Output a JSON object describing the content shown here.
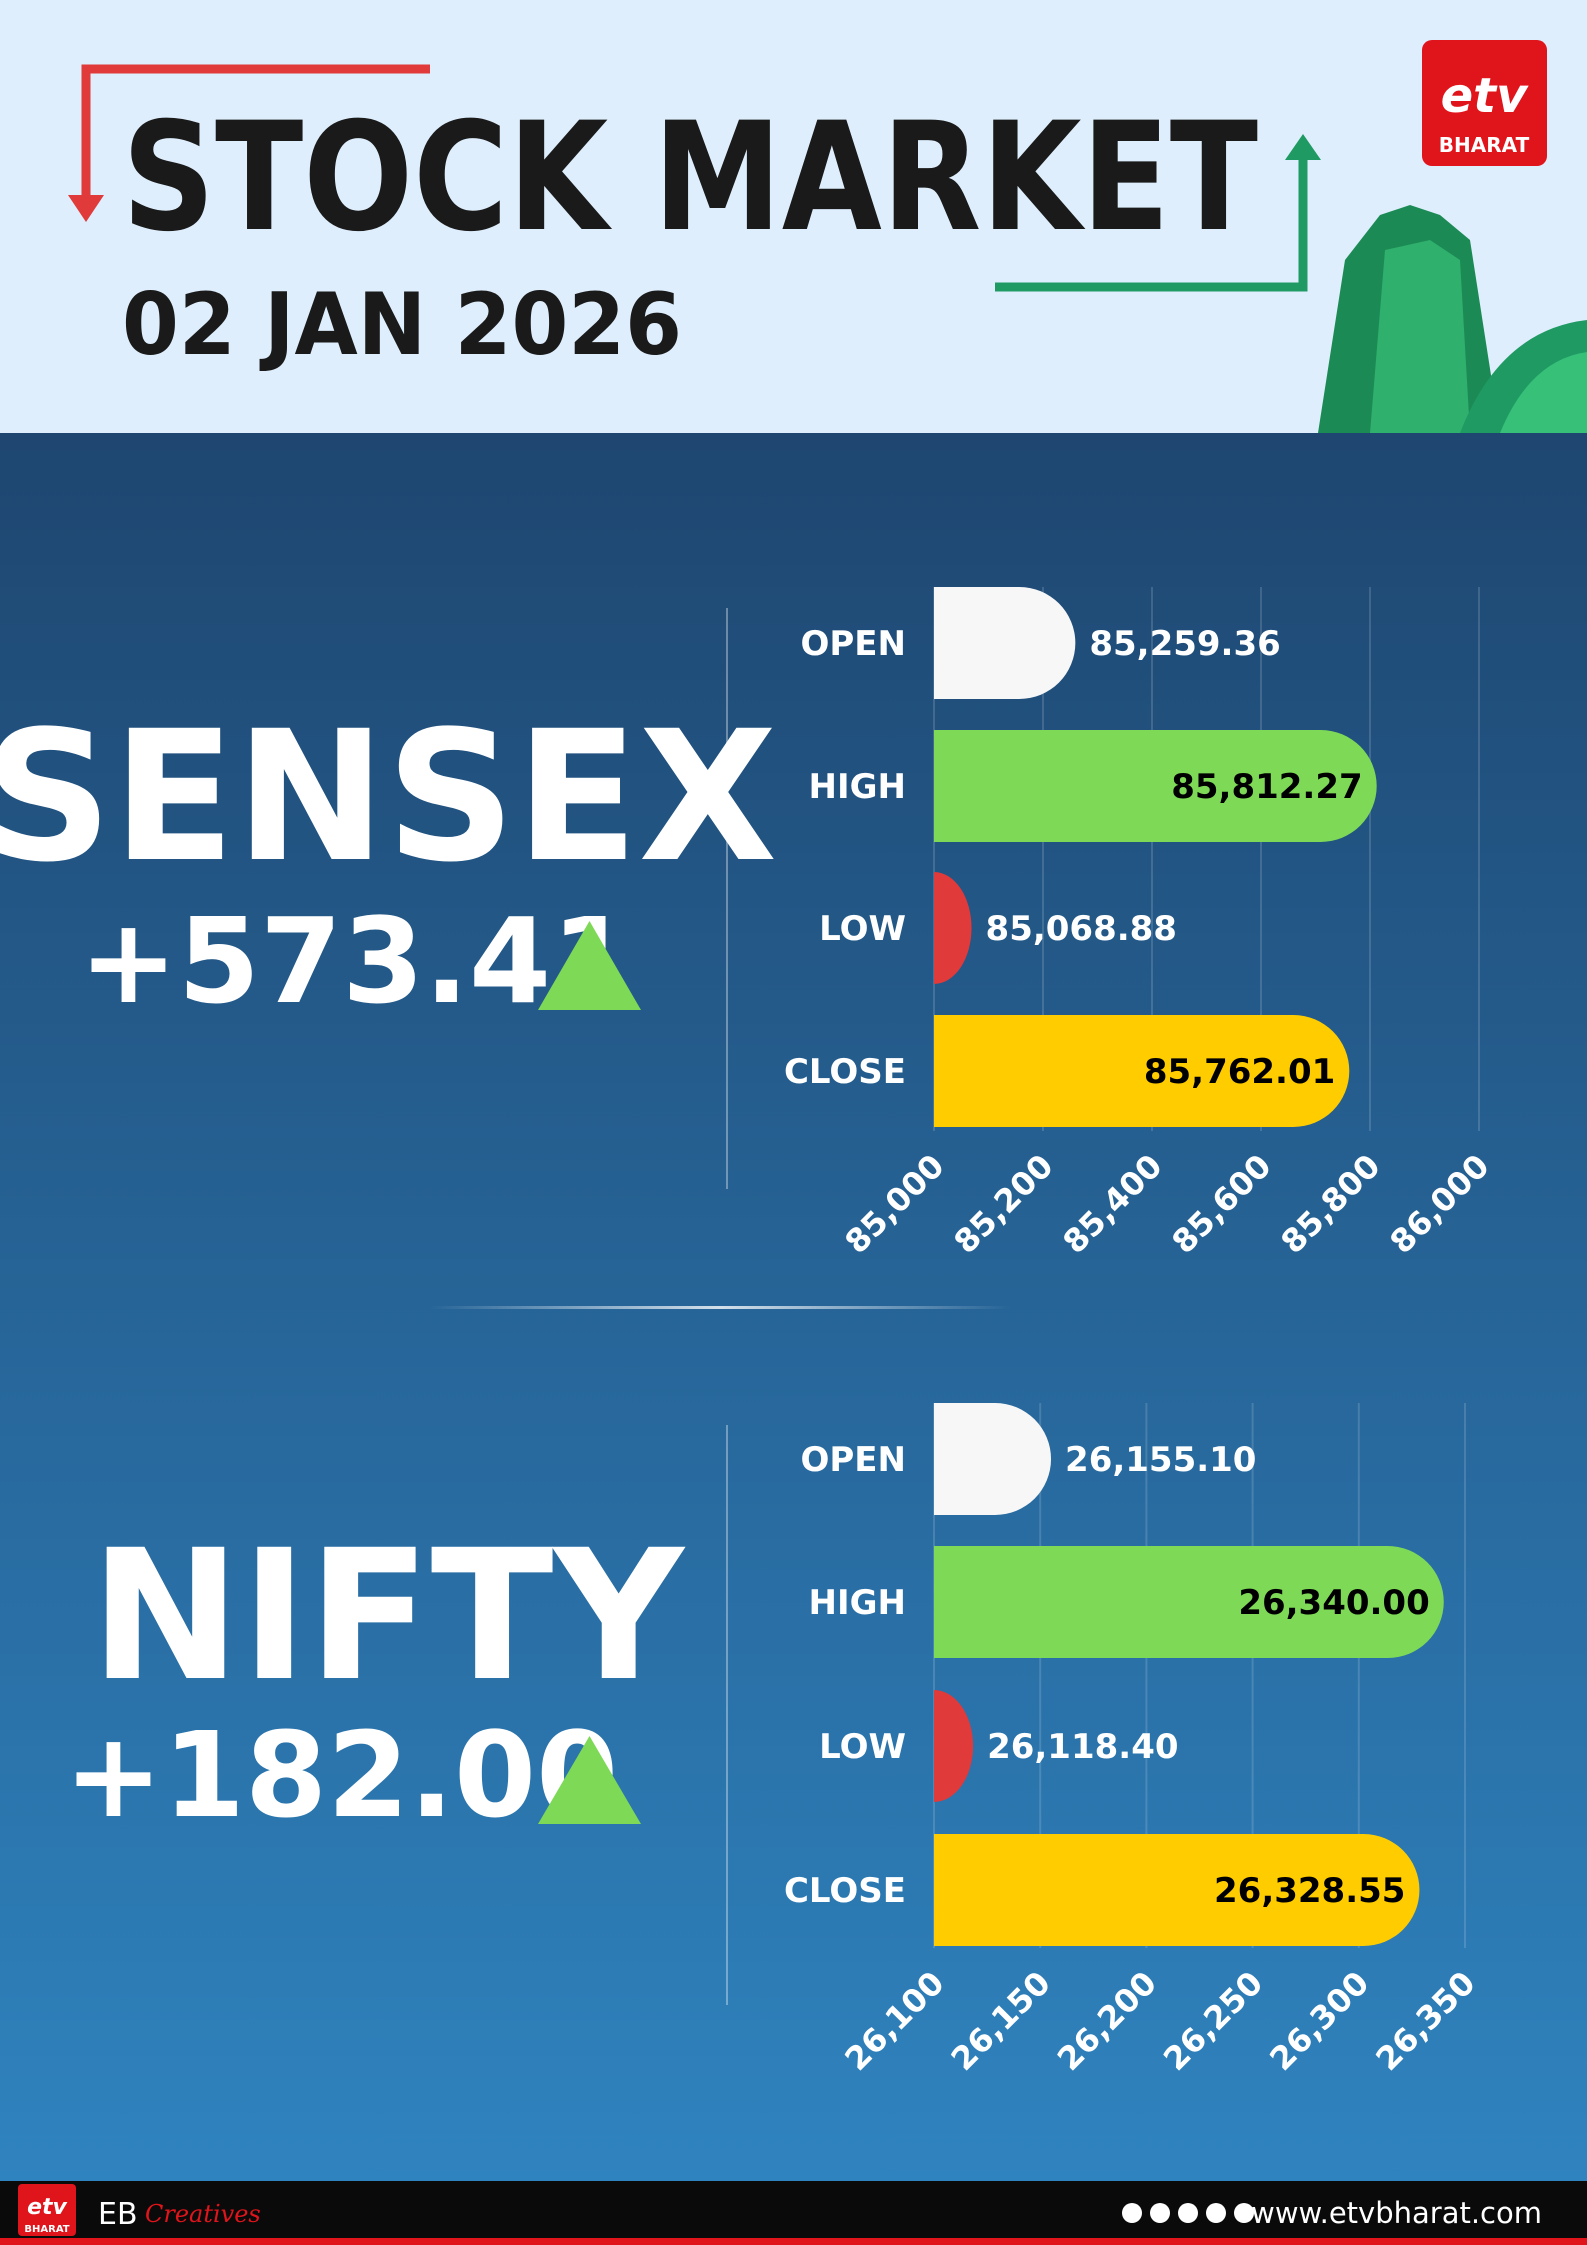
{
  "header": {
    "title": "STOCK MARKET",
    "date": "02 JAN 2026",
    "logo_mark": "etv",
    "logo_text": "BHARAT"
  },
  "chart_data": [
    {
      "type": "bar",
      "orientation": "horizontal",
      "title": "SENSEX",
      "change": "+573.41",
      "categories": [
        "OPEN",
        "HIGH",
        "LOW",
        "CLOSE"
      ],
      "values": [
        85259.36,
        85812.27,
        85068.88,
        85762.01
      ],
      "value_labels": [
        "85,259.36",
        "85,812.27",
        "85,068.88",
        "85,762.01"
      ],
      "colors": [
        "#f7f7f7",
        "#7ed957",
        "#e03a3a",
        "#ffcc00"
      ],
      "xlim": [
        85000,
        86000
      ],
      "xticks": [
        {
          "value": 85000,
          "label": "85,000"
        },
        {
          "value": 85200,
          "label": "85,200"
        },
        {
          "value": 85400,
          "label": "85,400"
        },
        {
          "value": 85600,
          "label": "85,600"
        },
        {
          "value": 85800,
          "label": "85,800"
        },
        {
          "value": 86000,
          "label": "86,000"
        }
      ],
      "grid": true
    },
    {
      "type": "bar",
      "orientation": "horizontal",
      "title": "NIFTY",
      "change": "+182.00",
      "categories": [
        "OPEN",
        "HIGH",
        "LOW",
        "CLOSE"
      ],
      "values": [
        26155.1,
        26340.0,
        26118.4,
        26328.55
      ],
      "value_labels": [
        "26,155.10",
        "26,340.00",
        "26,118.40",
        "26,328.55"
      ],
      "colors": [
        "#f7f7f7",
        "#7ed957",
        "#e03a3a",
        "#ffcc00"
      ],
      "xlim": [
        26100,
        26350
      ],
      "xticks": [
        {
          "value": 26100,
          "label": "26,100"
        },
        {
          "value": 26150,
          "label": "26,150"
        },
        {
          "value": 26200,
          "label": "26,200"
        },
        {
          "value": 26250,
          "label": "26,250"
        },
        {
          "value": 26300,
          "label": "26,300"
        },
        {
          "value": 26350,
          "label": "26,350"
        }
      ],
      "grid": true
    }
  ],
  "footer": {
    "logo_mark": "etv",
    "logo_text": "BHARAT",
    "brand": "EB",
    "tagline": "Creatives",
    "url": "www.etvbharat.com"
  }
}
